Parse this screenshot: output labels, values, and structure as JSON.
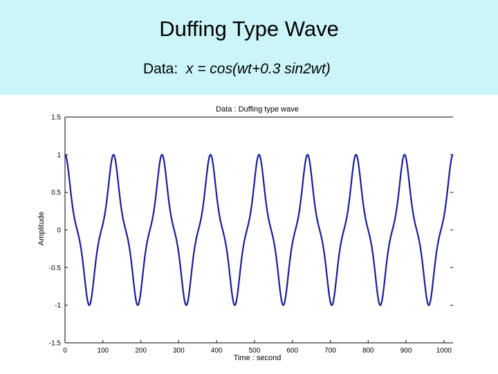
{
  "slide": {
    "title": "Duffing Type Wave",
    "subtitle_prefix": "Data:  ",
    "subtitle_formula": "x = cos(wt+0.3 sin2wt)"
  },
  "colors": {
    "header_bg": "#ccf5fa",
    "line": "#1a1a9c",
    "axis": "#000000"
  },
  "chart_data": {
    "type": "line",
    "title": "Data : Duffing type wave",
    "xlabel": "Time : second",
    "ylabel": "Amplitude",
    "xlim": [
      0,
      1024
    ],
    "ylim": [
      -1.5,
      1.5
    ],
    "x_ticks": [
      0,
      100,
      200,
      300,
      400,
      500,
      600,
      700,
      800,
      900,
      1000
    ],
    "x_tick_labels": [
      "0",
      "100",
      "200",
      "300",
      "400",
      "500",
      "600",
      "700",
      "800",
      "900",
      "1000"
    ],
    "y_ticks": [
      1.5,
      1,
      0.5,
      0,
      -0.5,
      -1,
      -1.5
    ],
    "y_tick_labels": [
      "1.5",
      "1",
      "0.5",
      "0",
      "-0.5",
      "-1",
      "-1.5"
    ],
    "grid": false,
    "series": [
      {
        "name": "x = cos(wt+0.3 sin2wt)",
        "formula": "cos(w*t + 0.3*sin(2*w*t))",
        "period": 128,
        "t_start": 0,
        "t_end": 1024,
        "sample_step": 1
      }
    ]
  }
}
